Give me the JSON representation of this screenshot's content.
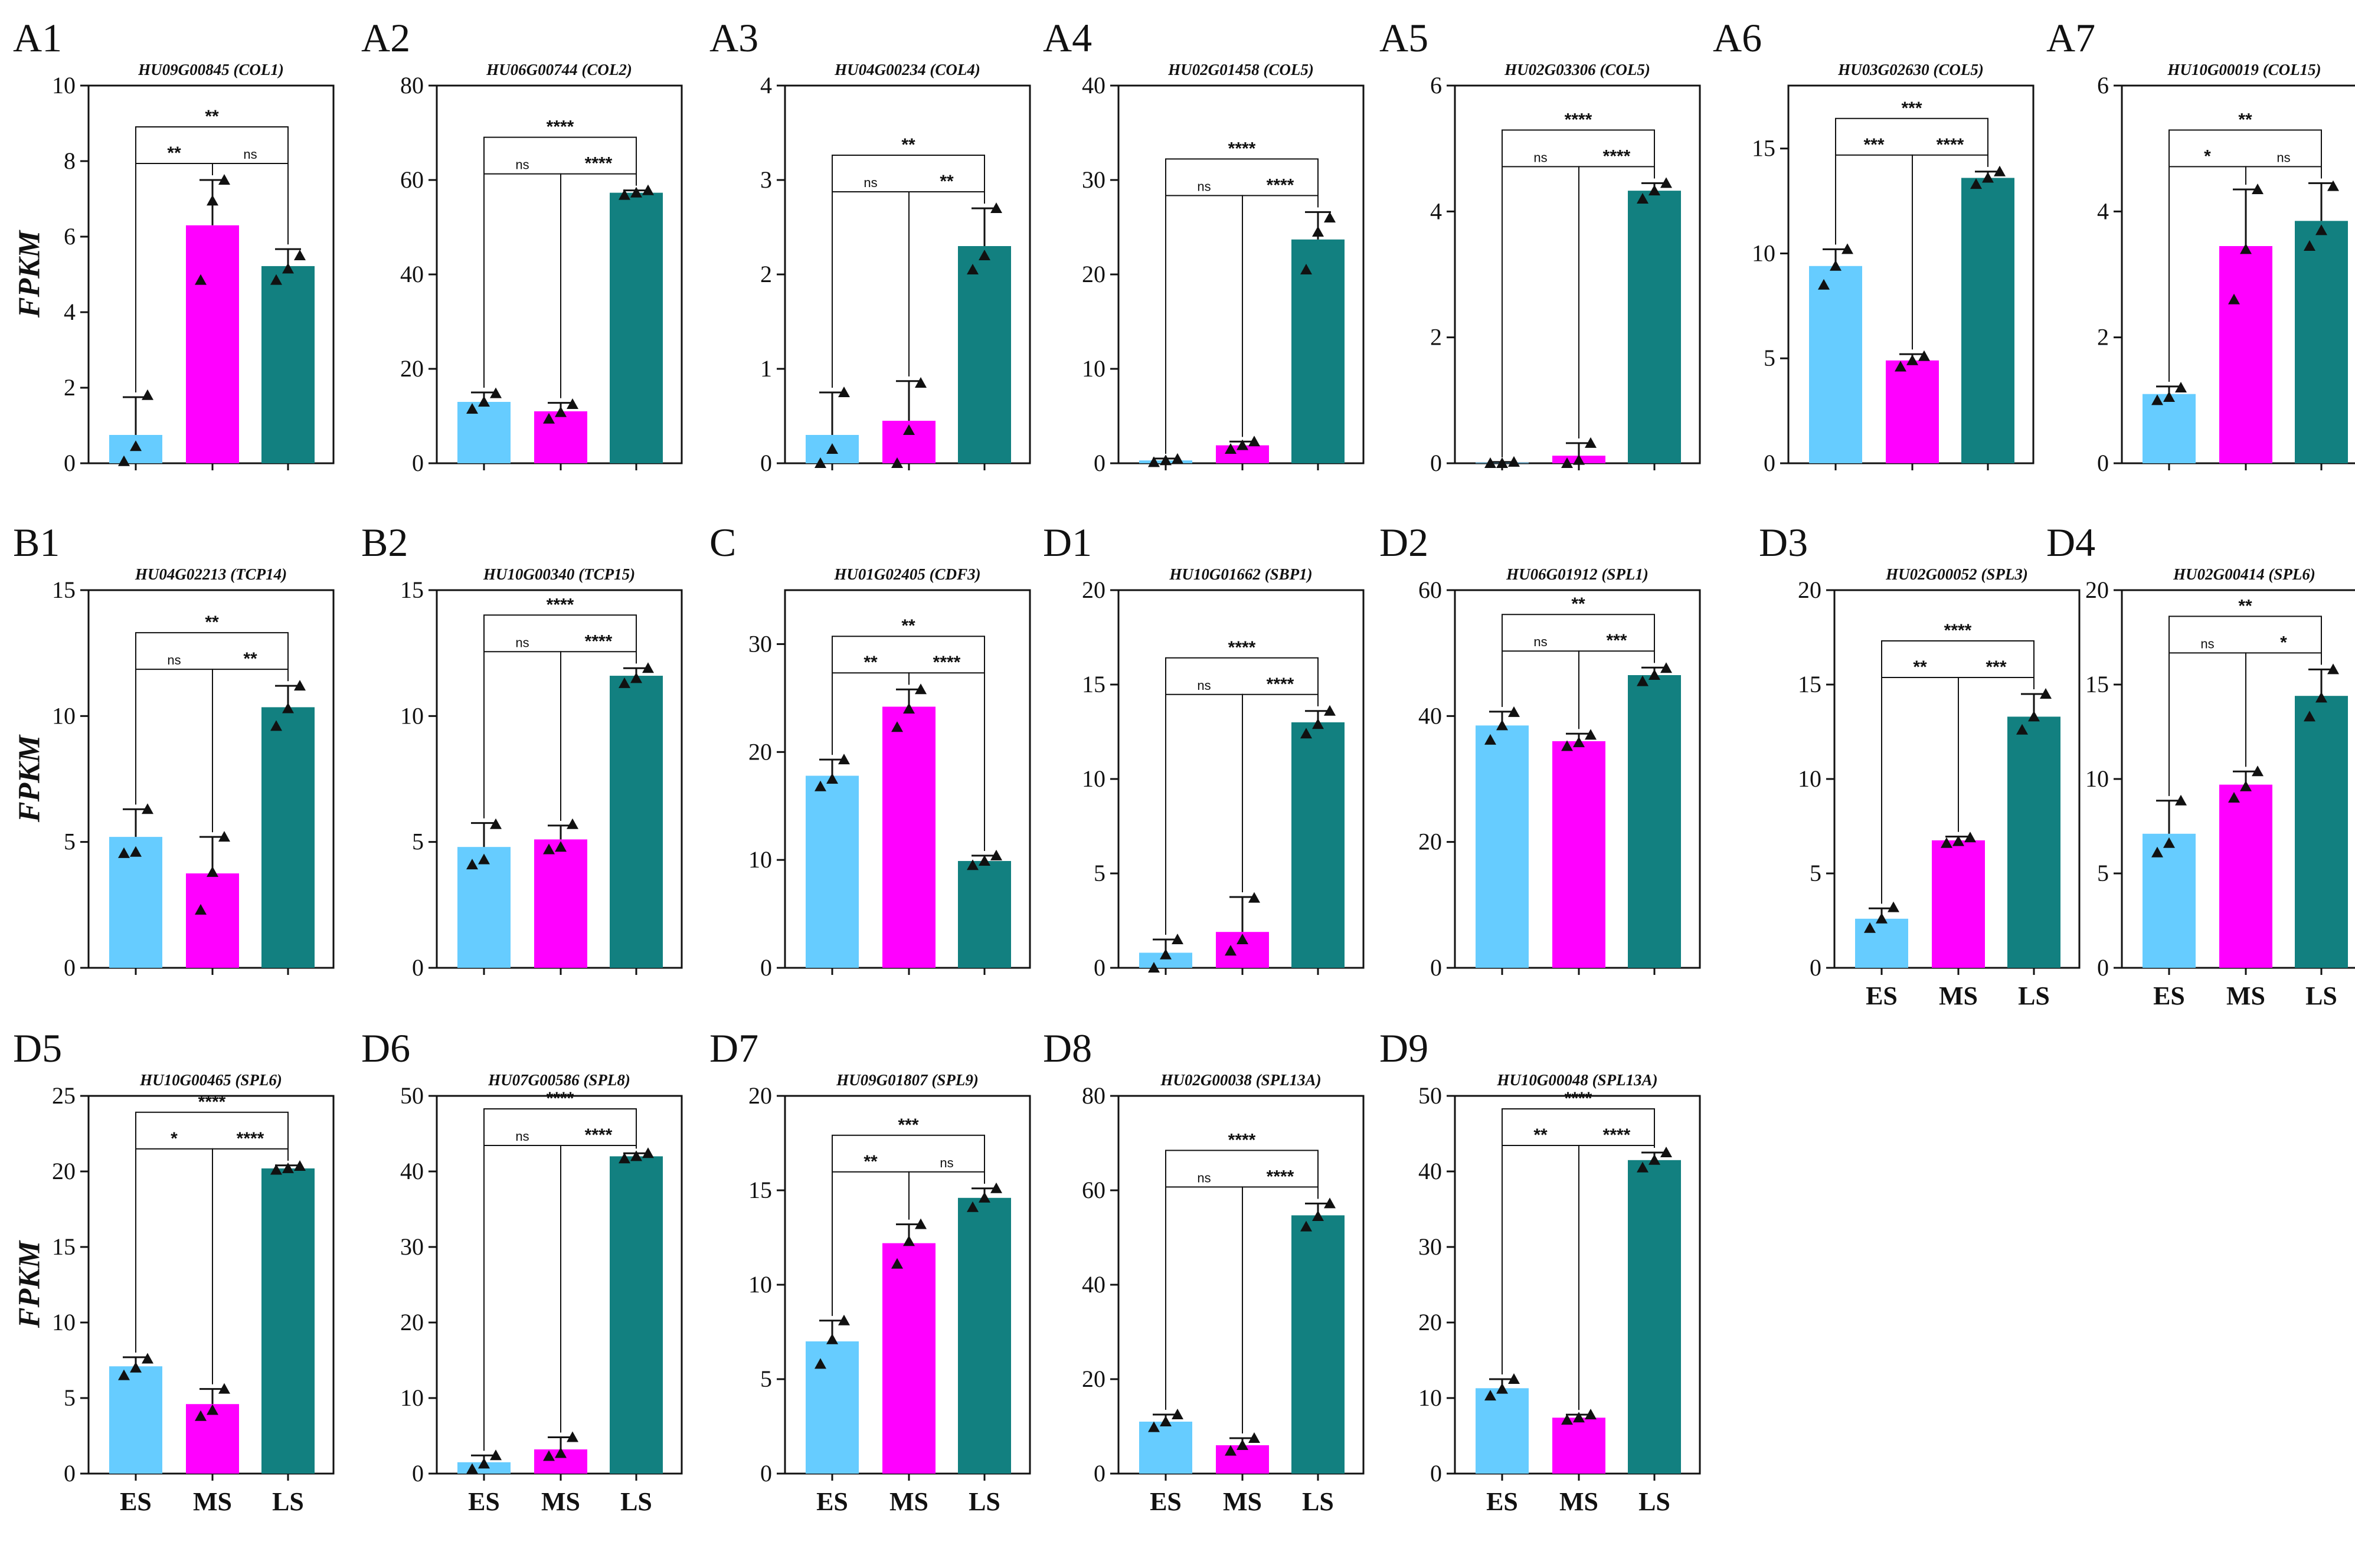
{
  "y_axis_label": "FPKM",
  "colors": {
    "ES": "#66CCFF",
    "MS": "#FF00FF",
    "LS": "#128080"
  },
  "chart_data": [
    {
      "panel": "A1",
      "type": "bar",
      "title": "HU09G00845 (COL1)",
      "categories": [
        "ES",
        "MS",
        "LS"
      ],
      "values": [
        0.75,
        6.3,
        5.22
      ],
      "errors": [
        1.0,
        1.2,
        0.45
      ],
      "points": [
        [
          0.05,
          0.45,
          1.8
        ],
        [
          4.85,
          6.95,
          7.5
        ],
        [
          4.85,
          5.15,
          5.5
        ]
      ],
      "ylim": [
        0,
        10
      ],
      "yticks": [
        0,
        2,
        4,
        6,
        8,
        10
      ],
      "sig": {
        "es_ms": "**",
        "ms_ls": "ns",
        "es_ls": "**"
      },
      "show_ylabel": true,
      "show_xlabels": false
    },
    {
      "panel": "A2",
      "type": "bar",
      "title": "HU06G00744 (COL2)",
      "categories": [
        "ES",
        "MS",
        "LS"
      ],
      "values": [
        13,
        11,
        57.3
      ],
      "errors": [
        2,
        1.8,
        0.5
      ],
      "points": [
        [
          11.5,
          13.0,
          14.8
        ],
        [
          9.4,
          10.8,
          12.5
        ],
        [
          56.8,
          57.3,
          57.8
        ]
      ],
      "ylim": [
        0,
        80
      ],
      "yticks": [
        0,
        20,
        40,
        60,
        80
      ],
      "sig": {
        "es_ms": "ns",
        "ms_ls": "****",
        "es_ls": "****"
      },
      "show_ylabel": false,
      "show_xlabels": false
    },
    {
      "panel": "A3",
      "type": "bar",
      "title": "HU04G00234 (COL4)",
      "categories": [
        "ES",
        "MS",
        "LS"
      ],
      "values": [
        0.3,
        0.45,
        2.3
      ],
      "errors": [
        0.45,
        0.42,
        0.4
      ],
      "points": [
        [
          0.0,
          0.15,
          0.75
        ],
        [
          0.0,
          0.35,
          0.85
        ],
        [
          2.05,
          2.2,
          2.7
        ]
      ],
      "ylim": [
        0,
        4
      ],
      "yticks": [
        0,
        1,
        2,
        3,
        4
      ],
      "sig": {
        "es_ms": "ns",
        "ms_ls": "**",
        "es_ls": "**"
      },
      "show_ylabel": false,
      "show_xlabels": false
    },
    {
      "panel": "A4",
      "type": "bar",
      "title": "HU02G01458 (COL5)",
      "categories": [
        "ES",
        "MS",
        "LS"
      ],
      "values": [
        0.3,
        1.9,
        23.7
      ],
      "errors": [
        0.2,
        0.4,
        2.9
      ],
      "points": [
        [
          0.1,
          0.3,
          0.45
        ],
        [
          1.5,
          1.9,
          2.3
        ],
        [
          20.5,
          24.5,
          26.0
        ]
      ],
      "ylim": [
        0,
        40
      ],
      "yticks": [
        0,
        10,
        20,
        30,
        40
      ],
      "sig": {
        "es_ms": "ns",
        "ms_ls": "****",
        "es_ls": "****"
      },
      "show_ylabel": false,
      "show_xlabels": false
    },
    {
      "panel": "A5",
      "type": "bar",
      "title": "HU02G03306 (COL5)",
      "categories": [
        "ES",
        "MS",
        "LS"
      ],
      "values": [
        0.01,
        0.12,
        4.33
      ],
      "errors": [
        0.01,
        0.2,
        0.12
      ],
      "points": [
        [
          0.0,
          0.0,
          0.02
        ],
        [
          0.0,
          0.05,
          0.32
        ],
        [
          4.2,
          4.33,
          4.45
        ]
      ],
      "ylim": [
        0,
        6
      ],
      "yticks": [
        0,
        2,
        4,
        6
      ],
      "sig": {
        "es_ms": "ns",
        "ms_ls": "****",
        "es_ls": "****"
      },
      "show_ylabel": false,
      "show_xlabels": false
    },
    {
      "panel": "A6",
      "type": "bar",
      "title": "HU03G02630 (COL5)",
      "categories": [
        "ES",
        "MS",
        "LS"
      ],
      "values": [
        9.4,
        4.9,
        13.6
      ],
      "errors": [
        0.8,
        0.3,
        0.3
      ],
      "points": [
        [
          8.5,
          9.4,
          10.2
        ],
        [
          4.6,
          4.9,
          5.1
        ],
        [
          13.3,
          13.6,
          13.9
        ]
      ],
      "ylim": [
        0,
        18
      ],
      "yticks": [
        0,
        5,
        10,
        15
      ],
      "sig": {
        "es_ms": "***",
        "ms_ls": "****",
        "es_ls": "***"
      },
      "show_ylabel": false,
      "show_xlabels": false
    },
    {
      "panel": "A7",
      "type": "bar",
      "title": "HU10G00019 (COL15)",
      "categories": [
        "ES",
        "MS",
        "LS"
      ],
      "values": [
        1.1,
        3.45,
        3.85
      ],
      "errors": [
        0.12,
        0.9,
        0.6
      ],
      "points": [
        [
          1.0,
          1.05,
          1.2
        ],
        [
          2.6,
          3.4,
          4.35
        ],
        [
          3.45,
          3.7,
          4.4
        ]
      ],
      "ylim": [
        0,
        6
      ],
      "yticks": [
        0,
        2,
        4,
        6
      ],
      "sig": {
        "es_ms": "*",
        "ms_ls": "ns",
        "es_ls": "**"
      },
      "show_ylabel": false,
      "show_xlabels": false
    },
    {
      "panel": "B1",
      "type": "bar",
      "title": "HU04G02213 (TCP14)",
      "categories": [
        "ES",
        "MS",
        "LS"
      ],
      "values": [
        5.2,
        3.75,
        10.35
      ],
      "errors": [
        1.1,
        1.45,
        0.85
      ],
      "points": [
        [
          4.55,
          4.6,
          6.3
        ],
        [
          2.3,
          3.8,
          5.2
        ],
        [
          9.6,
          10.3,
          11.2
        ]
      ],
      "ylim": [
        0,
        15
      ],
      "yticks": [
        0,
        5,
        10,
        15
      ],
      "sig": {
        "es_ms": "ns",
        "ms_ls": "**",
        "es_ls": "**"
      },
      "show_ylabel": true,
      "show_xlabels": false
    },
    {
      "panel": "B2",
      "type": "bar",
      "title": "HU10G00340 (TCP15)",
      "categories": [
        "ES",
        "MS",
        "LS"
      ],
      "values": [
        4.8,
        5.1,
        11.6
      ],
      "errors": [
        0.95,
        0.55,
        0.3
      ],
      "points": [
        [
          4.1,
          4.3,
          5.7
        ],
        [
          4.7,
          4.8,
          5.7
        ],
        [
          11.3,
          11.5,
          11.9
        ]
      ],
      "ylim": [
        0,
        15
      ],
      "yticks": [
        0,
        5,
        10,
        15
      ],
      "sig": {
        "es_ms": "ns",
        "ms_ls": "****",
        "es_ls": "****"
      },
      "show_ylabel": false,
      "show_xlabels": false
    },
    {
      "panel": "C",
      "type": "bar",
      "title": "HU01G02405 (CDF3)",
      "categories": [
        "ES",
        "MS",
        "LS"
      ],
      "values": [
        17.8,
        24.2,
        9.9
      ],
      "errors": [
        1.5,
        1.6,
        0.5
      ],
      "points": [
        [
          16.8,
          17.5,
          19.3
        ],
        [
          22.3,
          24.0,
          25.8
        ],
        [
          9.5,
          9.9,
          10.4
        ]
      ],
      "ylim": [
        0,
        35
      ],
      "yticks": [
        0,
        10,
        20,
        30
      ],
      "sig": {
        "es_ms": "**",
        "ms_ls": "****",
        "es_ls": "**"
      },
      "show_ylabel": false,
      "show_xlabels": false
    },
    {
      "panel": "D1",
      "type": "bar",
      "title": "HU10G01662 (SBP1)",
      "categories": [
        "ES",
        "MS",
        "LS"
      ],
      "values": [
        0.8,
        1.9,
        13
      ],
      "errors": [
        0.7,
        1.85,
        0.6
      ],
      "points": [
        [
          0.0,
          0.7,
          1.5
        ],
        [
          0.9,
          1.5,
          3.7
        ],
        [
          12.4,
          12.9,
          13.6
        ]
      ],
      "ylim": [
        0,
        20
      ],
      "yticks": [
        0,
        5,
        10,
        15,
        20
      ],
      "sig": {
        "es_ms": "ns",
        "ms_ls": "****",
        "es_ls": "****"
      },
      "show_ylabel": false,
      "show_xlabels": false
    },
    {
      "panel": "D2",
      "type": "bar",
      "title": "HU06G01912 (SPL1)",
      "categories": [
        "ES",
        "MS",
        "LS"
      ],
      "values": [
        38.5,
        36,
        46.5
      ],
      "errors": [
        2.2,
        1.2,
        1.2
      ],
      "points": [
        [
          36.2,
          38.5,
          40.6
        ],
        [
          35.2,
          35.8,
          37.0
        ],
        [
          45.5,
          46.5,
          47.6
        ]
      ],
      "ylim": [
        0,
        60
      ],
      "yticks": [
        0,
        20,
        40,
        60
      ],
      "sig": {
        "es_ms": "ns",
        "ms_ls": "***",
        "es_ls": "**"
      },
      "show_ylabel": false,
      "show_xlabels": false
    },
    {
      "panel": "D3",
      "type": "bar",
      "title": "HU02G00052 (SPL3)",
      "categories": [
        "ES",
        "MS",
        "LS"
      ],
      "values": [
        2.6,
        6.75,
        13.3
      ],
      "errors": [
        0.55,
        0.2,
        1.2
      ],
      "points": [
        [
          2.1,
          2.6,
          3.2
        ],
        [
          6.6,
          6.7,
          6.9
        ],
        [
          12.6,
          13.3,
          14.5
        ]
      ],
      "ylim": [
        0,
        20
      ],
      "yticks": [
        0,
        5,
        10,
        15,
        20
      ],
      "sig": {
        "es_ms": "**",
        "ms_ls": "***",
        "es_ls": "****"
      },
      "show_ylabel": false,
      "show_xlabels": true
    },
    {
      "panel": "D4",
      "type": "bar",
      "title": "HU02G00414 (SPL6)",
      "categories": [
        "ES",
        "MS",
        "LS"
      ],
      "values": [
        7.1,
        9.7,
        14.4
      ],
      "errors": [
        1.75,
        0.7,
        1.4
      ],
      "points": [
        [
          6.1,
          6.6,
          8.85
        ],
        [
          9.0,
          9.6,
          10.4
        ],
        [
          13.3,
          14.3,
          15.8
        ]
      ],
      "ylim": [
        0,
        20
      ],
      "yticks": [
        0,
        5,
        10,
        15,
        20
      ],
      "sig": {
        "es_ms": "ns",
        "ms_ls": "*",
        "es_ls": "**"
      },
      "show_ylabel": false,
      "show_xlabels": true
    },
    {
      "panel": "D5",
      "type": "bar",
      "title": "HU10G00465 (SPL6)",
      "categories": [
        "ES",
        "MS",
        "LS"
      ],
      "values": [
        7.1,
        4.6,
        20.2
      ],
      "errors": [
        0.6,
        1.0,
        0.2
      ],
      "points": [
        [
          6.5,
          7.0,
          7.6
        ],
        [
          3.8,
          4.2,
          5.6
        ],
        [
          20.1,
          20.2,
          20.35
        ]
      ],
      "ylim": [
        0,
        25
      ],
      "yticks": [
        0,
        5,
        10,
        15,
        20,
        25
      ],
      "sig": {
        "es_ms": "*",
        "ms_ls": "****",
        "es_ls": "****"
      },
      "show_ylabel": true,
      "show_xlabels": true
    },
    {
      "panel": "D6",
      "type": "bar",
      "title": "HU07G00586 (SPL8)",
      "categories": [
        "ES",
        "MS",
        "LS"
      ],
      "values": [
        1.5,
        3.2,
        42
      ],
      "errors": [
        0.9,
        1.6,
        0.4
      ],
      "points": [
        [
          0.6,
          1.3,
          2.4
        ],
        [
          2.3,
          2.7,
          4.8
        ],
        [
          41.7,
          42.0,
          42.4
        ]
      ],
      "ylim": [
        0,
        50
      ],
      "yticks": [
        0,
        10,
        20,
        30,
        40,
        50
      ],
      "sig": {
        "es_ms": "ns",
        "ms_ls": "****",
        "es_ls": "****"
      },
      "show_ylabel": false,
      "show_xlabels": true
    },
    {
      "panel": "D7",
      "type": "bar",
      "title": "HU09G01807 (SPL9)",
      "categories": [
        "ES",
        "MS",
        "LS"
      ],
      "values": [
        7,
        12.2,
        14.6
      ],
      "errors": [
        1.1,
        1.0,
        0.5
      ],
      "points": [
        [
          5.8,
          7.1,
          8.1
        ],
        [
          11.1,
          12.3,
          13.2
        ],
        [
          14.1,
          14.6,
          15.1
        ]
      ],
      "ylim": [
        0,
        20
      ],
      "yticks": [
        0,
        5,
        10,
        15,
        20
      ],
      "sig": {
        "es_ms": "**",
        "ms_ls": "ns",
        "es_ls": "***"
      },
      "show_ylabel": false,
      "show_xlabels": true
    },
    {
      "panel": "D8",
      "type": "bar",
      "title": "HU02G00038 (SPL13A)",
      "categories": [
        "ES",
        "MS",
        "LS"
      ],
      "values": [
        11,
        6,
        54.7
      ],
      "errors": [
        1.5,
        1.5,
        2.5
      ],
      "points": [
        [
          9.8,
          11.0,
          12.5
        ],
        [
          4.8,
          6.0,
          7.5
        ],
        [
          52.3,
          54.5,
          57.2
        ]
      ],
      "ylim": [
        0,
        80
      ],
      "yticks": [
        0,
        20,
        40,
        60,
        80
      ],
      "sig": {
        "es_ms": "ns",
        "ms_ls": "****",
        "es_ls": "****"
      },
      "show_ylabel": false,
      "show_xlabels": true
    },
    {
      "panel": "D9",
      "type": "bar",
      "title": "HU10G00048 (SPL13A)",
      "categories": [
        "ES",
        "MS",
        "LS"
      ],
      "values": [
        11.3,
        7.4,
        41.5
      ],
      "errors": [
        1.2,
        0.4,
        1.0
      ],
      "points": [
        [
          10.3,
          11.2,
          12.5
        ],
        [
          7.1,
          7.4,
          7.8
        ],
        [
          40.5,
          41.5,
          42.5
        ]
      ],
      "ylim": [
        0,
        50
      ],
      "yticks": [
        0,
        10,
        20,
        30,
        40,
        50
      ],
      "sig": {
        "es_ms": "**",
        "ms_ls": "****",
        "es_ls": "****"
      },
      "show_ylabel": false,
      "show_xlabels": true
    }
  ]
}
